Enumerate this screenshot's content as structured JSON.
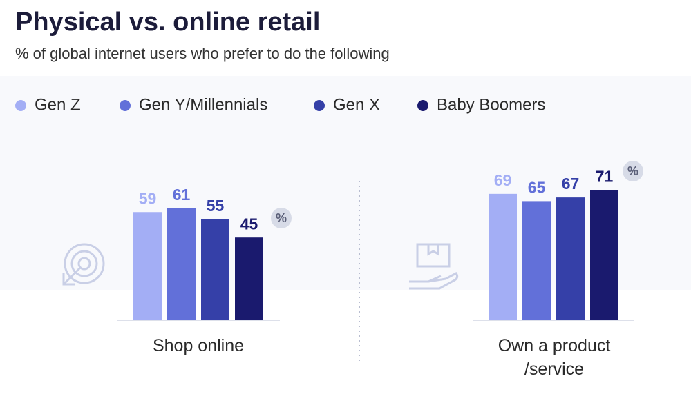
{
  "chart_data": {
    "type": "bar",
    "title": "Physical vs. online retail",
    "subtitle": "% of global internet users who prefer to do the following",
    "categories": [
      "Shop online",
      "Own a product /service"
    ],
    "unit_badge": "%",
    "series": [
      {
        "name": "Gen Z",
        "color": "#a3aef5",
        "values": [
          59,
          69
        ]
      },
      {
        "name": "Gen Y/Millennials",
        "color": "#6270d9",
        "values": [
          61,
          65
        ]
      },
      {
        "name": "Gen X",
        "color": "#3540a8",
        "values": [
          55,
          67
        ]
      },
      {
        "name": "Baby Boomers",
        "color": "#1a1a6e",
        "values": [
          45,
          71
        ]
      }
    ]
  }
}
